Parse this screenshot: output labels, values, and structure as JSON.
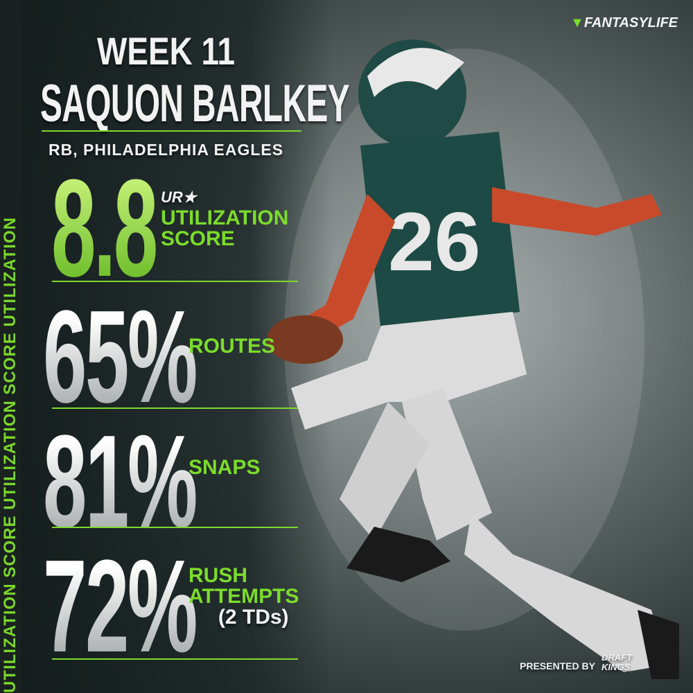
{
  "sidebar": {
    "text": "UTILIZATION SCORE UTILIZATION SCORE UTILIZATION"
  },
  "logo": "FANTASYLIFE",
  "header": {
    "week": "WEEK 11",
    "player": "SAQUON BARLKEY",
    "position": "RB, PHILADELPHIA EAGLES"
  },
  "score": {
    "value": "8.8",
    "badge": "UR★",
    "label": [
      "UTILIZATION",
      "SCORE"
    ]
  },
  "stats": [
    {
      "value": "65%",
      "label": [
        "ROUTES"
      ]
    },
    {
      "value": "81%",
      "label": [
        "SNAPS"
      ]
    },
    {
      "value": "72%",
      "label": [
        "RUSH",
        "ATTEMPTS"
      ],
      "note": "(2 TDs)"
    }
  ],
  "footer": {
    "presented_by": "PRESENTED BY",
    "sponsor": [
      "DRAFT",
      "KINGS"
    ]
  }
}
